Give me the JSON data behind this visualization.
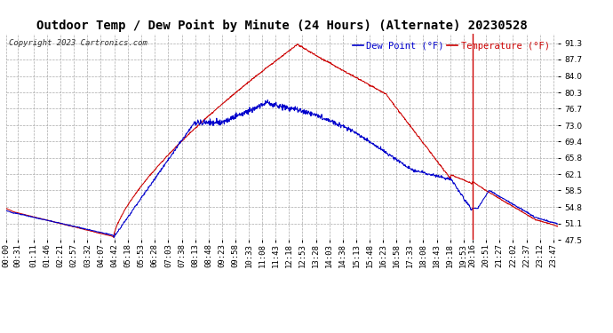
{
  "title": "Outdoor Temp / Dew Point by Minute (24 Hours) (Alternate) 20230528",
  "copyright": "Copyright 2023 Cartronics.com",
  "legend_dew": "Dew Point (°F)",
  "legend_temp": "Temperature (°F)",
  "yticks": [
    47.5,
    51.1,
    54.8,
    58.5,
    62.1,
    65.8,
    69.4,
    73.0,
    76.7,
    80.3,
    84.0,
    87.7,
    91.3
  ],
  "ymin": 47.5,
  "ymax": 93.5,
  "xtick_labels": [
    "00:00",
    "00:31",
    "01:11",
    "01:46",
    "02:21",
    "02:57",
    "03:32",
    "04:07",
    "04:42",
    "05:18",
    "05:53",
    "06:28",
    "07:03",
    "07:38",
    "08:13",
    "08:48",
    "09:23",
    "09:58",
    "10:33",
    "11:08",
    "11:43",
    "12:18",
    "12:53",
    "13:28",
    "14:03",
    "14:38",
    "15:13",
    "15:48",
    "16:23",
    "16:58",
    "17:33",
    "18:08",
    "18:43",
    "19:18",
    "19:53",
    "20:16",
    "20:51",
    "21:27",
    "22:02",
    "22:37",
    "23:12",
    "23:47"
  ],
  "vline_x_minutes": 1216,
  "bg_color": "#ffffff",
  "grid_color": "#aaaaaa",
  "temp_color": "#cc0000",
  "dew_color": "#0000cc",
  "title_fontsize": 10,
  "tick_fontsize": 6.5
}
